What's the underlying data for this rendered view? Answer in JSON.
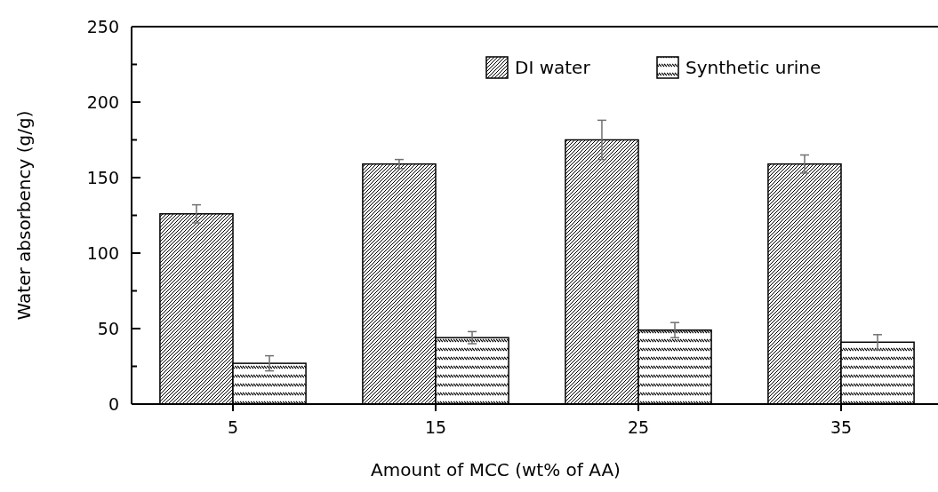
{
  "chart_data": {
    "type": "bar",
    "xlabel": "Amount of MCC (wt% of AA)",
    "ylabel": "Water absorbency (g/g)",
    "categories": [
      "5",
      "15",
      "25",
      "35"
    ],
    "series": [
      {
        "name": "DI water",
        "color": "#000000",
        "values": [
          126,
          159,
          175,
          159
        ],
        "errors": [
          6,
          3,
          13,
          6
        ]
      },
      {
        "name": "Synthetic urine",
        "color": "#000000",
        "values": [
          27,
          44,
          49,
          41
        ],
        "errors": [
          5,
          4,
          5,
          5
        ]
      }
    ],
    "ylim": [
      0,
      250
    ],
    "yticks": [
      0,
      {
        "value": 25,
        "label": null
      },
      50,
      {
        "value": 75,
        "label": null
      },
      100,
      {
        "value": 125,
        "label": null
      },
      150,
      {
        "value": 175,
        "label": null
      },
      200,
      {
        "value": 225,
        "label": null
      },
      250
    ],
    "legend": "top right",
    "grid": false
  }
}
